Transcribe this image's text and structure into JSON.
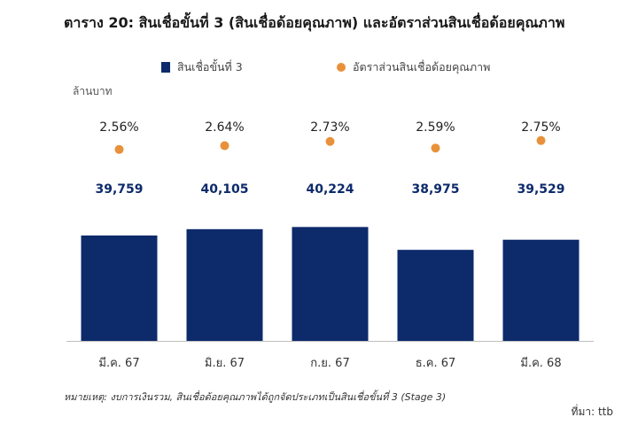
{
  "title": "ตาราง 20: สินเชื่อขั้นที่ 3 (สินเชื่อด้อยคุณภาพ) และอัตราส่วนสินเชื่อด้อยคุณภาพ",
  "unit_label": "ล้านบาท",
  "note": "หมายเหตุ: งบการเงินรวม, สินเชื่อด้อยคุณภาพได้ถูกจัดประเภทเป็นสินเชื่อขั้นที่ 3 (Stage 3)",
  "source": "ที่มา: ttb",
  "colors": {
    "bar": "#0d2a6b",
    "dot": "#e8903a",
    "bar_label": "#0d2a6b",
    "axis": "#bfbfbf"
  },
  "chart_data": {
    "type": "bar",
    "categories": [
      "มี.ค. 67",
      "มิ.ย. 67",
      "ก.ย. 67",
      "ธ.ค. 67",
      "มี.ค. 68"
    ],
    "series": [
      {
        "name": "สินเชื่อขั้นที่ 3",
        "type": "bar",
        "values": [
          39759,
          40105,
          40224,
          38975,
          39529
        ],
        "labels": [
          "39,759",
          "40,105",
          "40,224",
          "38,975",
          "39,529"
        ]
      },
      {
        "name": "อัตราส่วนสินเชื่อด้อยคุณภาพ",
        "type": "scatter",
        "values": [
          2.56,
          2.64,
          2.73,
          2.59,
          2.75
        ],
        "labels": [
          "2.56%",
          "2.64%",
          "2.73%",
          "2.59%",
          "2.75%"
        ]
      }
    ],
    "bar_axis_range": [
      34000,
      41500
    ],
    "ratio_axis_range": [
      2.35,
      2.95
    ],
    "grid": false,
    "legend_position": "top"
  }
}
